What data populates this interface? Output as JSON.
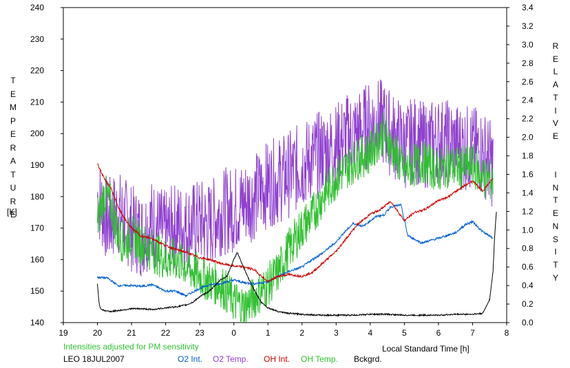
{
  "chart_data": {
    "type": "line",
    "xlabel": "Local Standard Time [h]",
    "ylabel_left": "TEMPERATURE",
    "ylabel_left_unit": "[K]",
    "ylabel_right": "RELATIVE INTENSITY",
    "note": "Intensities adjusted for PM sensitivity",
    "station_date": "LEO 18JUL2007",
    "x_axis": {
      "range": [
        19,
        32
      ],
      "tick_labels": [
        "19",
        "20",
        "21",
        "22",
        "23",
        "0",
        "1",
        "2",
        "3",
        "4",
        "5",
        "6",
        "7",
        "8"
      ]
    },
    "y_left": {
      "range": [
        140,
        240
      ],
      "tick_labels": [
        "140",
        "150",
        "160",
        "170",
        "180",
        "190",
        "200",
        "210",
        "220",
        "230",
        "240"
      ]
    },
    "y_right": {
      "range": [
        0.0,
        3.4
      ],
      "tick_labels": [
        "0.0",
        "0.2",
        "0.4",
        "0.6",
        "0.8",
        "1.0",
        "1.2",
        "1.4",
        "1.6",
        "1.8",
        "2.0",
        "2.2",
        "2.4",
        "2.6",
        "2.8",
        "3.0",
        "3.2",
        "3.4"
      ]
    },
    "grid": false,
    "legend": "bottom",
    "series": [
      {
        "name": "O2 Int.",
        "axis": "right",
        "color": "#0060d0",
        "x": [
          20.0,
          20.3,
          20.6,
          21.0,
          21.3,
          21.6,
          22.0,
          22.3,
          22.6,
          23.0,
          23.3,
          23.6,
          24.0,
          24.3,
          24.6,
          25.0,
          25.3,
          25.6,
          26.0,
          26.3,
          26.6,
          27.0,
          27.2,
          27.5,
          27.8,
          28.0,
          28.2,
          28.4,
          28.6,
          28.9,
          29.1,
          29.5,
          30.0,
          30.5,
          30.8,
          31.0,
          31.3,
          31.6
        ],
        "y": [
          0.49,
          0.48,
          0.4,
          0.4,
          0.39,
          0.41,
          0.34,
          0.34,
          0.29,
          0.37,
          0.41,
          0.42,
          0.46,
          0.43,
          0.42,
          0.44,
          0.5,
          0.55,
          0.6,
          0.68,
          0.75,
          0.87,
          0.96,
          1.07,
          1.04,
          1.1,
          1.15,
          1.16,
          1.25,
          1.27,
          0.94,
          0.86,
          0.91,
          0.97,
          1.06,
          1.09,
          0.98,
          0.91
        ]
      },
      {
        "name": "O2 Temp.",
        "axis": "left",
        "color": "#9040d0",
        "x": [
          20.0,
          20.3,
          20.6,
          21.0,
          21.3,
          21.6,
          22.0,
          22.3,
          22.6,
          23.0,
          23.3,
          23.6,
          24.0,
          24.3,
          24.6,
          25.0,
          25.3,
          25.6,
          26.0,
          26.3,
          26.6,
          27.0,
          27.3,
          27.6,
          28.0,
          28.2,
          28.4,
          28.6,
          29.0,
          29.3,
          29.6,
          30.0,
          30.3,
          30.6,
          31.0,
          31.3,
          31.6
        ],
        "y": [
          180,
          172,
          175,
          170,
          168,
          172,
          168,
          171,
          170,
          172,
          171,
          175,
          176,
          178,
          180,
          184,
          185,
          187,
          190,
          192,
          194,
          196,
          199,
          200,
          203,
          204,
          203,
          200,
          196,
          198,
          196,
          198,
          197,
          196,
          195,
          194,
          190
        ]
      },
      {
        "name": "OH Int.",
        "axis": "right",
        "color": "#d00000",
        "x": [
          20.0,
          20.2,
          20.4,
          20.6,
          20.8,
          21.0,
          21.3,
          21.6,
          22.0,
          22.3,
          22.6,
          23.0,
          23.3,
          23.6,
          24.0,
          24.3,
          24.6,
          25.0,
          25.3,
          25.6,
          26.0,
          26.3,
          26.6,
          27.0,
          27.3,
          27.6,
          28.0,
          28.3,
          28.6,
          29.0,
          29.3,
          29.6,
          30.0,
          30.3,
          30.6,
          31.0,
          31.3,
          31.6
        ],
        "y": [
          1.72,
          1.55,
          1.45,
          1.25,
          1.12,
          1.02,
          0.93,
          0.91,
          0.83,
          0.79,
          0.76,
          0.7,
          0.68,
          0.64,
          0.61,
          0.6,
          0.57,
          0.44,
          0.5,
          0.52,
          0.5,
          0.54,
          0.64,
          0.77,
          0.91,
          1.05,
          1.17,
          1.22,
          1.31,
          1.1,
          1.19,
          1.22,
          1.32,
          1.36,
          1.44,
          1.53,
          1.42,
          1.56
        ]
      },
      {
        "name": "OH Temp.",
        "axis": "left",
        "color": "#30c030",
        "x": [
          20.0,
          20.2,
          20.4,
          20.6,
          20.8,
          21.0,
          21.3,
          21.6,
          22.0,
          22.3,
          22.6,
          23.0,
          23.3,
          23.6,
          24.0,
          24.3,
          24.6,
          25.0,
          25.3,
          25.6,
          26.0,
          26.3,
          26.6,
          27.0,
          27.3,
          27.6,
          28.0,
          28.2,
          28.4,
          28.6,
          29.0,
          29.3,
          29.6,
          30.0,
          30.3,
          30.6,
          31.0,
          31.3,
          31.6
        ],
        "y": [
          171,
          181,
          177,
          168,
          165,
          168,
          165,
          163,
          160,
          160,
          158,
          155,
          153,
          152,
          147,
          145,
          148,
          152,
          156,
          163,
          170,
          174,
          180,
          186,
          189,
          192,
          194,
          198,
          200,
          196,
          188,
          190,
          191,
          188,
          190,
          189,
          190,
          186,
          185
        ]
      },
      {
        "name": "Bckgrd.",
        "axis": "right",
        "color": "#000000",
        "x": [
          20.0,
          20.05,
          20.1,
          20.2,
          20.4,
          20.6,
          20.8,
          21.0,
          21.3,
          21.6,
          22.0,
          22.3,
          22.6,
          22.8,
          23.0,
          23.2,
          23.4,
          23.6,
          23.8,
          24.0,
          24.1,
          24.3,
          24.5,
          24.8,
          25.0,
          25.3,
          25.6,
          26.0,
          26.5,
          27.0,
          27.5,
          28.0,
          28.5,
          29.0,
          29.5,
          30.0,
          30.5,
          31.0,
          31.3,
          31.5,
          31.6,
          31.65,
          31.7
        ],
        "y": [
          0.42,
          0.2,
          0.15,
          0.13,
          0.12,
          0.13,
          0.14,
          0.15,
          0.15,
          0.14,
          0.16,
          0.17,
          0.19,
          0.22,
          0.28,
          0.32,
          0.38,
          0.46,
          0.5,
          0.68,
          0.76,
          0.58,
          0.42,
          0.22,
          0.16,
          0.12,
          0.1,
          0.09,
          0.08,
          0.08,
          0.08,
          0.09,
          0.09,
          0.08,
          0.08,
          0.08,
          0.09,
          0.09,
          0.1,
          0.25,
          0.55,
          0.95,
          1.2
        ]
      }
    ]
  },
  "legend_colors": {
    "note": "#30c030",
    "station": "#000000"
  }
}
